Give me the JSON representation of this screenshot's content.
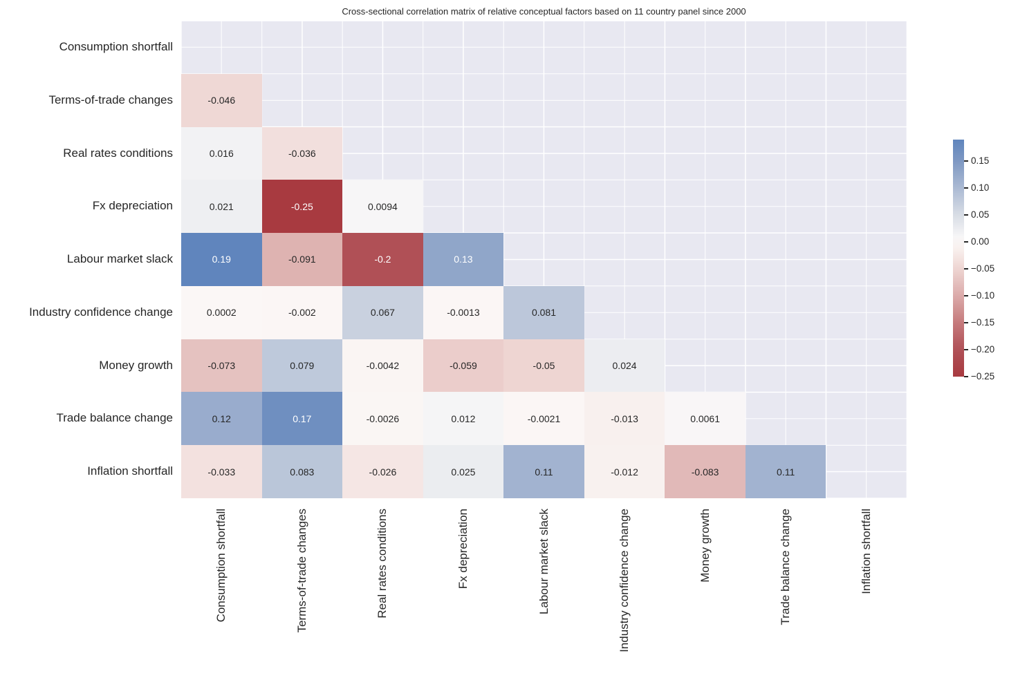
{
  "chart_data": {
    "type": "heatmap",
    "title": "Cross-sectional correlation matrix of relative conceptual factors based on 11 country panel since 2000",
    "categories": [
      "Consumption shortfall",
      "Terms-of-trade changes",
      "Real rates conditions",
      "Fx depreciation",
      "Labour market slack",
      "Industry confidence change",
      "Money growth",
      "Trade balance change",
      "Inflation shortfall"
    ],
    "mask": "upper triangle and diagonal hidden",
    "matrix": [
      [
        null,
        null,
        null,
        null,
        null,
        null,
        null,
        null,
        null
      ],
      [
        -0.046,
        null,
        null,
        null,
        null,
        null,
        null,
        null,
        null
      ],
      [
        0.016,
        -0.036,
        null,
        null,
        null,
        null,
        null,
        null,
        null
      ],
      [
        0.021,
        -0.25,
        0.0094,
        null,
        null,
        null,
        null,
        null,
        null
      ],
      [
        0.19,
        -0.091,
        -0.2,
        0.13,
        null,
        null,
        null,
        null,
        null
      ],
      [
        0.0002,
        -0.002,
        0.067,
        -0.0013,
        0.081,
        null,
        null,
        null,
        null
      ],
      [
        -0.073,
        0.079,
        -0.0042,
        -0.059,
        -0.05,
        0.024,
        null,
        null,
        null
      ],
      [
        0.12,
        0.17,
        -0.0026,
        0.012,
        -0.0021,
        -0.013,
        0.0061,
        null,
        null
      ],
      [
        -0.033,
        0.083,
        -0.026,
        0.025,
        0.11,
        -0.012,
        -0.083,
        0.11,
        null
      ]
    ],
    "colormap": "vlag (red-white-blue diverging)",
    "vmin": -0.25,
    "vmax": 0.19,
    "center": 0,
    "colorbar": {
      "tick_values": [
        0.15,
        0.1,
        0.05,
        0.0,
        -0.05,
        -0.1,
        -0.15,
        -0.2,
        -0.25
      ],
      "tick_labels": [
        "0.15",
        "0.10",
        "0.05",
        "0.00",
        "−0.05",
        "−0.10",
        "−0.15",
        "−0.20",
        "−0.25"
      ]
    },
    "legend_position": "right",
    "grid": true
  },
  "style": {
    "background_color": "#ffffff",
    "masked_cell_color": "#e8e8f1",
    "grid_line_color": "#ffffff",
    "annot_dark_color": "#262626",
    "annot_light_color": "#ffffff",
    "label_color": "#262626",
    "colormap_anchors": [
      [
        0.0,
        "#a83a40"
      ],
      [
        0.1,
        "#b05056"
      ],
      [
        0.2,
        "#c67a7c"
      ],
      [
        0.3,
        "#dbabaa"
      ],
      [
        0.4,
        "#eed5d2"
      ],
      [
        0.48,
        "#f9f2f0"
      ],
      [
        0.5,
        "#fbf7f6"
      ],
      [
        0.52,
        "#f7f6f7"
      ],
      [
        0.6,
        "#d8dde5"
      ],
      [
        0.7,
        "#abbad3"
      ],
      [
        0.8,
        "#7e98c3"
      ],
      [
        0.88,
        "#6085bd"
      ],
      [
        1.0,
        "#356ab0"
      ]
    ]
  }
}
